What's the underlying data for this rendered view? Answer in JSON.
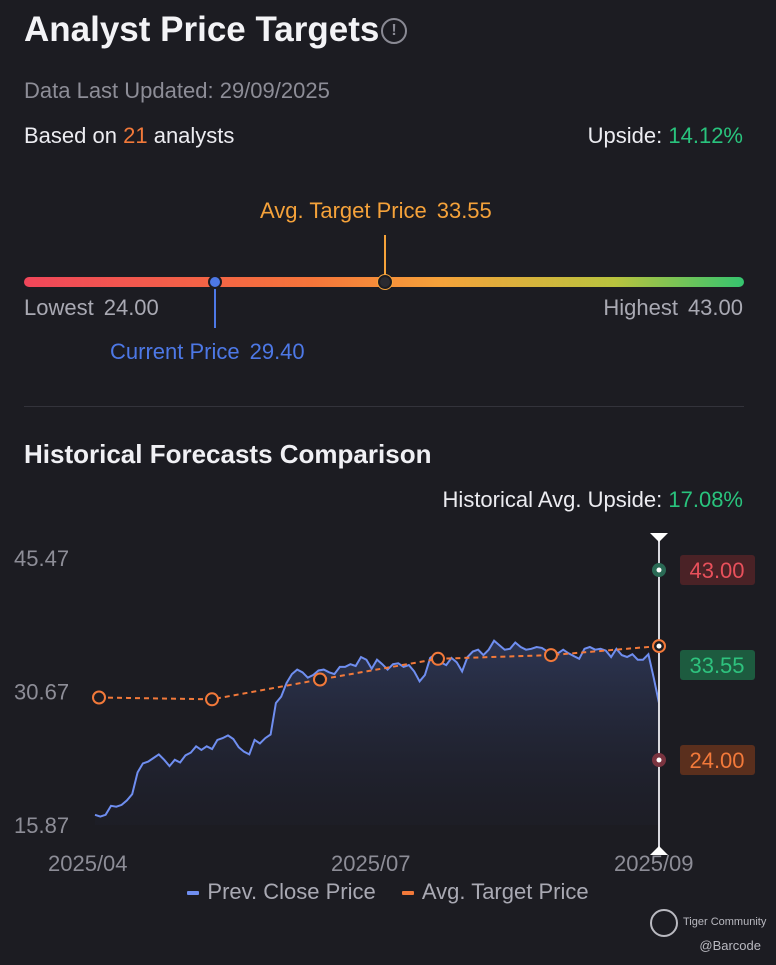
{
  "header": {
    "title": "Analyst Price Targets",
    "info_icon": "!",
    "updated_label": "Data Last Updated:",
    "updated_value": "29/09/2025",
    "based_prefix": "Based on",
    "analyst_count": "21",
    "based_suffix": "analysts",
    "upside_label": "Upside:",
    "upside_value": "14.12%"
  },
  "range": {
    "avg_label": "Avg. Target Price",
    "avg_value": "33.55",
    "current_label": "Current Price",
    "current_value": "29.40",
    "lowest_label": "Lowest",
    "lowest_value": "24.00",
    "highest_label": "Highest",
    "highest_value": "43.00",
    "low": 24.0,
    "high": 43.0,
    "avg": 33.55,
    "current": 29.4
  },
  "historical": {
    "title": "Historical Forecasts Comparison",
    "upside_label": "Historical Avg. Upside:",
    "upside_value": "17.08%"
  },
  "colors": {
    "price_line": "#6f8ef0",
    "target_line": "#f2793a",
    "high_tag": "#e8505b",
    "avg_tag": "#2ec27e",
    "low_tag": "#f2793a"
  },
  "chart_data": {
    "type": "line",
    "y_ticks": [
      "45.47",
      "30.67",
      "15.87"
    ],
    "ylim": [
      15.87,
      45.47
    ],
    "x_ticks": [
      "2025/04",
      "2025/07",
      "2025/09"
    ],
    "series": [
      {
        "name": "Prev. Close Price",
        "values": [
          17.0,
          16.8,
          17.0,
          18.0,
          17.9,
          18.1,
          18.6,
          19.3,
          21.7,
          22.7,
          22.9,
          23.3,
          23.7,
          23.1,
          22.4,
          23.1,
          22.8,
          23.6,
          23.9,
          24.6,
          24.2,
          24.6,
          24.3,
          25.3,
          25.5,
          25.8,
          25.4,
          24.5,
          24.0,
          23.7,
          25.3,
          24.9,
          25.5,
          25.9,
          29.4,
          30.1,
          31.6,
          32.6,
          33.1,
          32.8,
          32.2,
          32.5,
          33.0,
          33.1,
          32.8,
          32.6,
          33.4,
          33.4,
          33.7,
          33.5,
          34.5,
          34.2,
          33.2,
          34.2,
          33.7,
          33.1,
          33.7,
          33.8,
          33.4,
          33.6,
          32.9,
          31.8,
          32.5,
          34.4,
          34.8,
          33.9,
          33.6,
          34.4,
          33.9,
          32.9,
          34.5,
          35.1,
          35.3,
          34.7,
          35.3,
          36.3,
          35.8,
          35.3,
          35.4,
          36.1,
          35.6,
          35.3,
          35.4,
          35.6,
          35.5,
          35.1,
          35.2,
          34.9,
          35.3,
          34.9,
          34.6,
          34.3,
          35.4,
          35.6,
          35.3,
          35.4,
          35.2,
          34.5,
          35.4,
          34.7,
          34.5,
          34.8,
          34.2,
          34.2,
          34.8,
          32.2,
          29.4
        ]
      },
      {
        "name": "Avg. Target Price",
        "x_positions": [
          "2025/04",
          "",
          "",
          "",
          "",
          "2025/09"
        ],
        "values": [
          30.0,
          29.8,
          32.0,
          34.3,
          34.7,
          35.7
        ]
      }
    ],
    "tags": [
      {
        "label": "43.00",
        "value": 43.0
      },
      {
        "label": "33.55",
        "value": 33.55
      },
      {
        "label": "24.00",
        "value": 24.0
      }
    ],
    "legend": [
      "Prev. Close Price",
      "Avg. Target Price"
    ],
    "legend_position": "bottom"
  },
  "watermark": {
    "brand": "Tiger Community",
    "handle": "@Barcode"
  }
}
